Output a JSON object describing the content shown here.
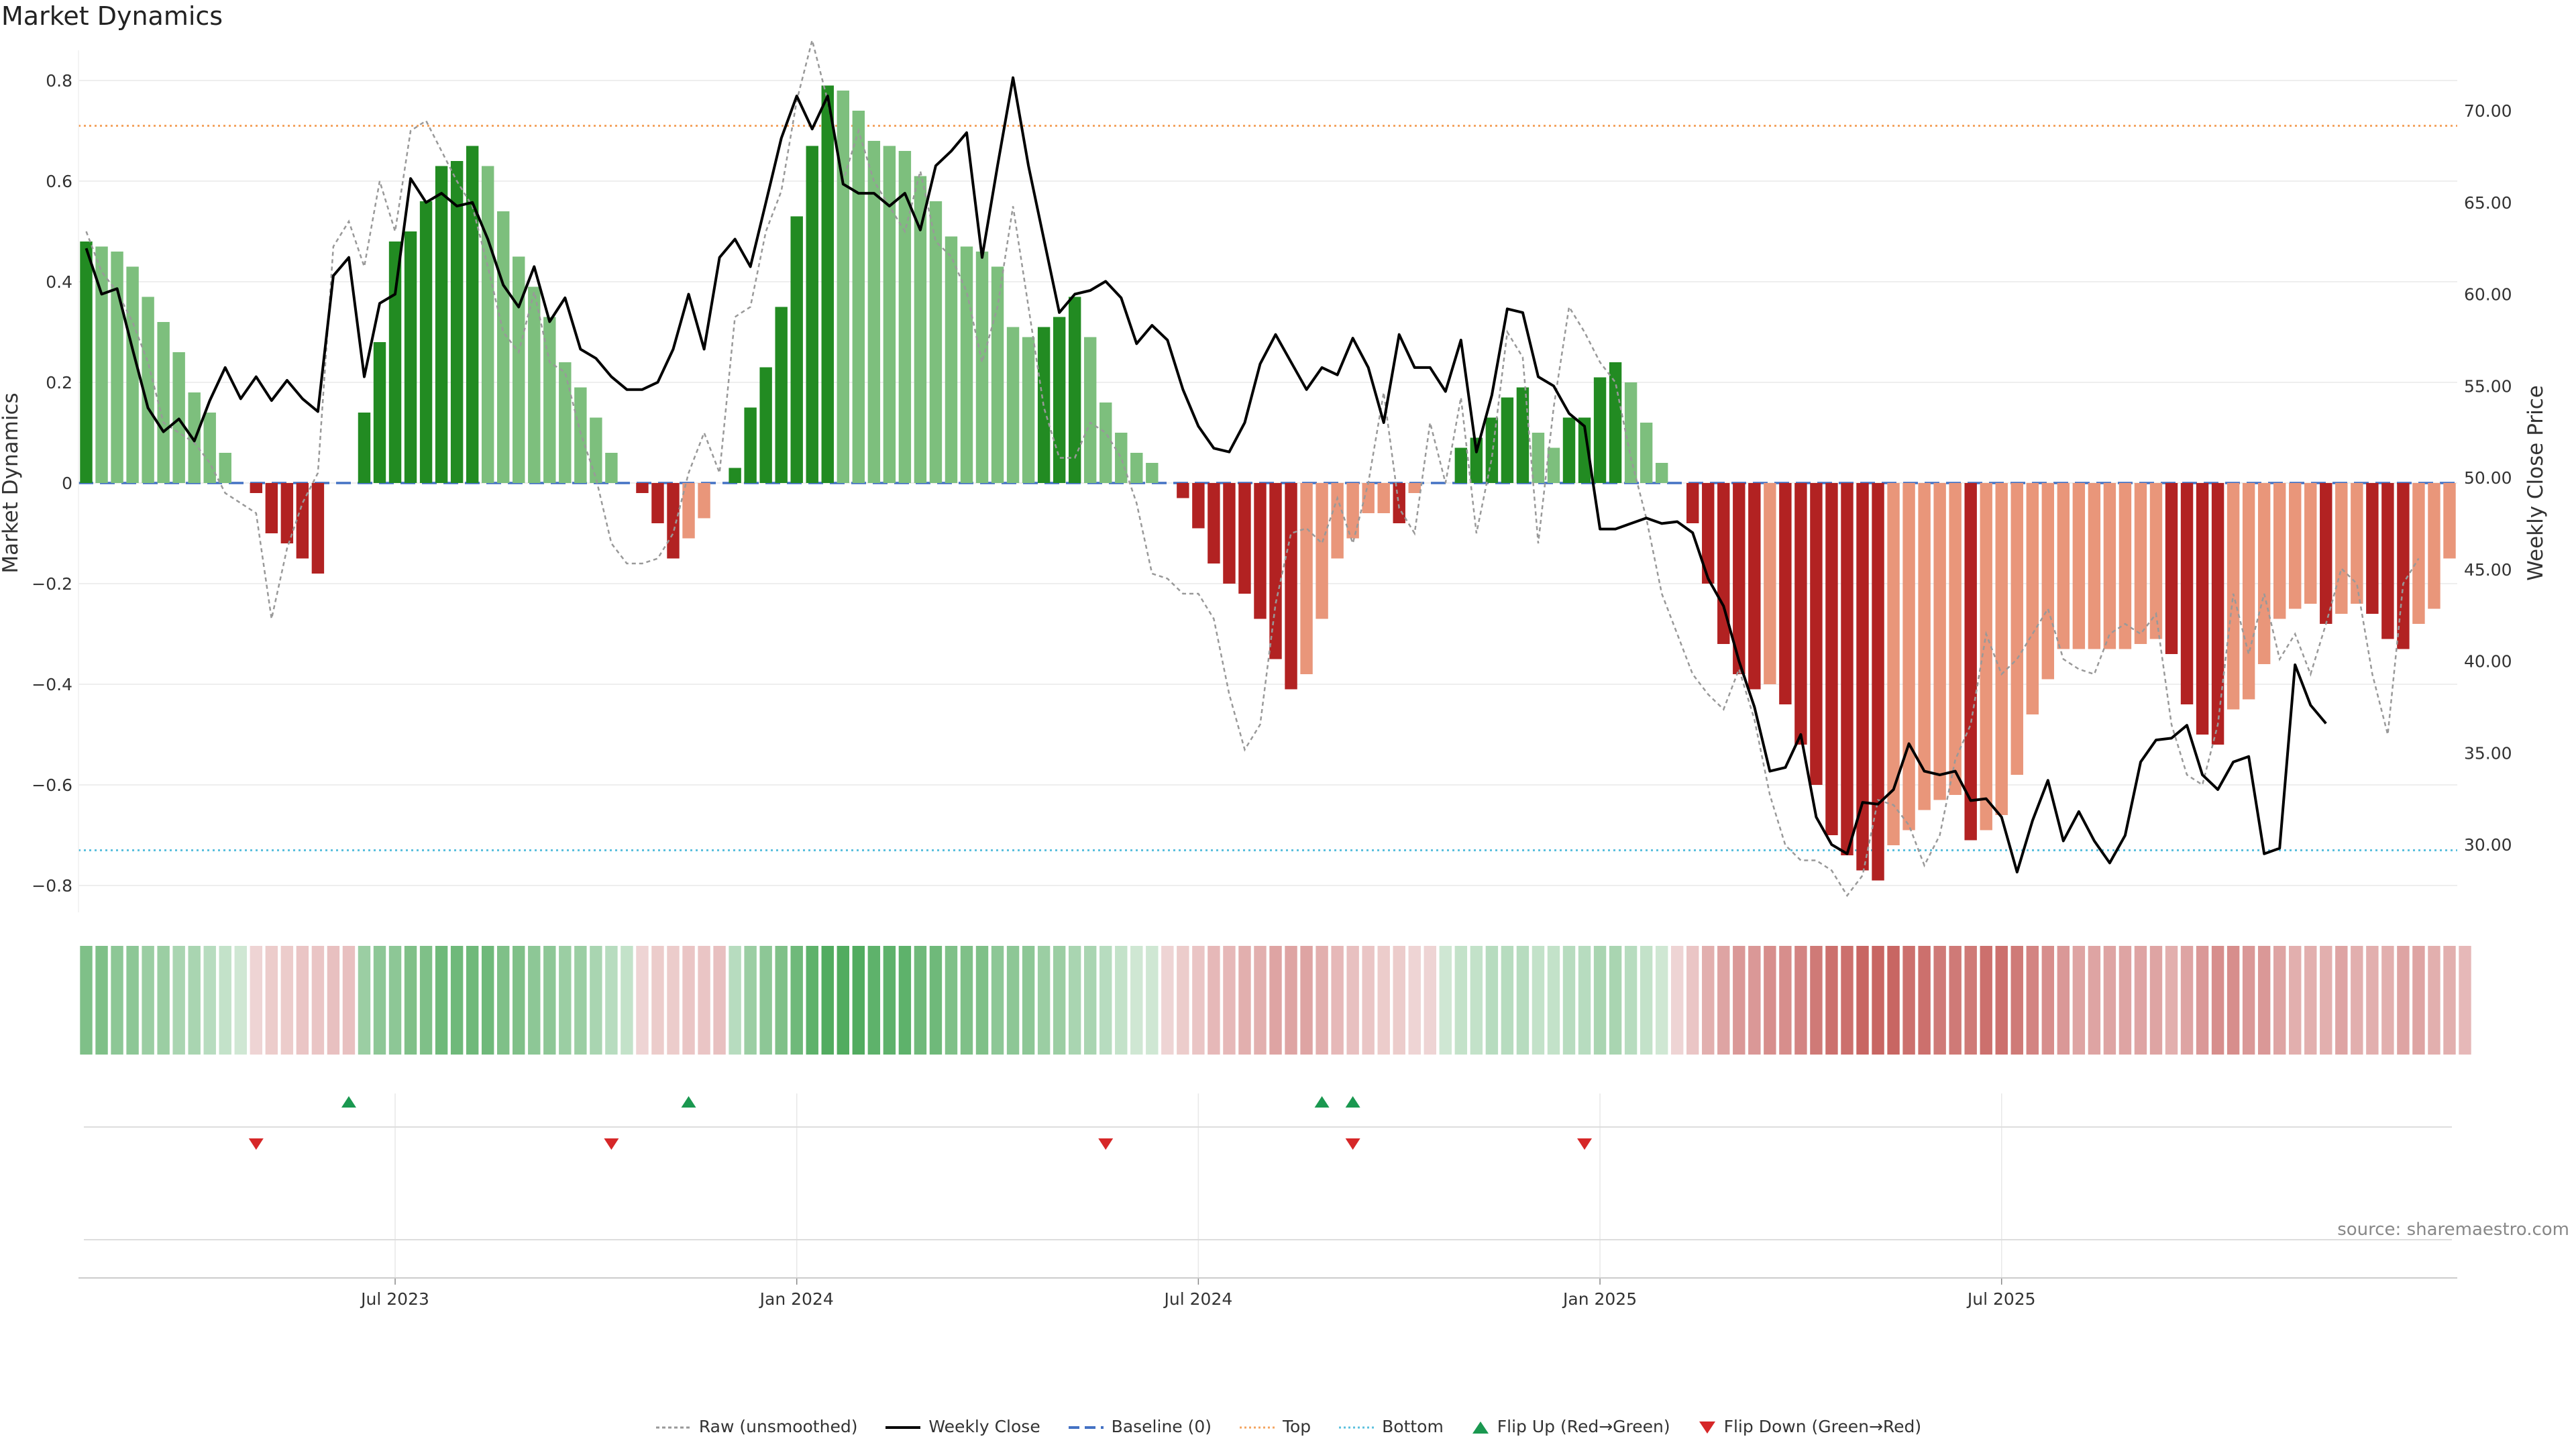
{
  "chart_data": {
    "title": "Market Dynamics",
    "source": "source: sharemaestro.com",
    "type": "bar+line",
    "ylabel_left": "Market Dynamics",
    "ylabel_right": "Weekly Close Price",
    "ylim_left": [
      -0.85,
      0.85
    ],
    "ylim_right": [
      26.5,
      72.5
    ],
    "yticks_left": [
      0.8,
      0.6,
      0.4,
      0.2,
      0,
      -0.2,
      -0.4,
      -0.6,
      -0.8
    ],
    "yticks_left_labels": [
      "0.8",
      "0.6",
      "0.4",
      "0.2",
      "0",
      "−0.2",
      "−0.4",
      "−0.6",
      "−0.8"
    ],
    "yticks_right": [
      70,
      65,
      60,
      55,
      50,
      45,
      40,
      35,
      30
    ],
    "yticks_right_labels": [
      "70.00",
      "65.00",
      "60.00",
      "55.00",
      "50.00",
      "45.00",
      "40.00",
      "35.00",
      "30.00"
    ],
    "xticks": [
      {
        "week": 20,
        "label": "Jul 2023"
      },
      {
        "week": 46,
        "label": "Jan 2024"
      },
      {
        "week": 72,
        "label": "Jul 2024"
      },
      {
        "week": 98,
        "label": "Jan 2025"
      },
      {
        "week": 124,
        "label": "Jul 2025"
      }
    ],
    "top_level": 0.71,
    "bottom_level": -0.73,
    "baseline": 0,
    "dynamics": [
      0.48,
      0.47,
      0.46,
      0.43,
      0.37,
      0.32,
      0.26,
      0.18,
      0.14,
      0.06,
      0.0,
      -0.02,
      -0.1,
      -0.12,
      -0.15,
      -0.18,
      0.0,
      0.0,
      0.14,
      0.28,
      0.48,
      0.5,
      0.56,
      0.63,
      0.64,
      0.67,
      0.63,
      0.54,
      0.45,
      0.39,
      0.33,
      0.24,
      0.19,
      0.13,
      0.06,
      0.0,
      -0.02,
      -0.08,
      -0.15,
      -0.11,
      -0.07,
      0.0,
      0.03,
      0.15,
      0.23,
      0.35,
      0.53,
      0.67,
      0.79,
      0.78,
      0.74,
      0.68,
      0.67,
      0.66,
      0.61,
      0.56,
      0.49,
      0.47,
      0.46,
      0.43,
      0.31,
      0.29,
      0.31,
      0.33,
      0.37,
      0.29,
      0.16,
      0.1,
      0.06,
      0.04,
      0.0,
      -0.03,
      -0.09,
      -0.16,
      -0.2,
      -0.22,
      -0.27,
      -0.35,
      -0.41,
      -0.38,
      -0.27,
      -0.15,
      -0.11,
      -0.06,
      -0.06,
      -0.08,
      -0.02,
      0.0,
      0.0,
      0.07,
      0.09,
      0.13,
      0.17,
      0.19,
      0.1,
      0.07,
      0.13,
      0.13,
      0.21,
      0.24,
      0.2,
      0.12,
      0.04,
      0.0,
      -0.08,
      -0.2,
      -0.32,
      -0.38,
      -0.41,
      -0.4,
      -0.44,
      -0.52,
      -0.6,
      -0.7,
      -0.74,
      -0.77,
      -0.79,
      -0.72,
      -0.69,
      -0.65,
      -0.63,
      -0.62,
      -0.71,
      -0.69,
      -0.66,
      -0.58,
      -0.46,
      -0.39,
      -0.33,
      -0.33,
      -0.33,
      -0.33,
      -0.33,
      -0.32,
      -0.31,
      -0.34,
      -0.44,
      -0.5,
      -0.52,
      -0.45,
      -0.43,
      -0.36,
      -0.27,
      -0.25,
      -0.24,
      -0.28,
      -0.26,
      -0.24,
      -0.26,
      -0.31,
      -0.33,
      -0.28,
      -0.25,
      -0.15
    ],
    "weekly_close": [
      62.5,
      60.0,
      60.3,
      57.0,
      53.8,
      52.5,
      53.2,
      52.0,
      54.2,
      56.0,
      54.3,
      55.5,
      54.2,
      55.3,
      54.3,
      53.6,
      61.0,
      62.0,
      55.5,
      59.5,
      60.0,
      66.3,
      65.0,
      65.5,
      64.8,
      65.0,
      63.0,
      60.5,
      59.3,
      61.5,
      58.5,
      59.8,
      57.0,
      56.5,
      55.5,
      54.8,
      54.8,
      55.2,
      57.0,
      60.0,
      57.0,
      62.0,
      63.0,
      61.5,
      65.0,
      68.5,
      70.8,
      69.0,
      70.8,
      66.0,
      65.5,
      65.5,
      64.8,
      65.5,
      63.5,
      67.0,
      67.8,
      68.8,
      62.0,
      67.0,
      71.8,
      67.0,
      63.0,
      59.0,
      60.0,
      60.2,
      60.7,
      59.8,
      57.3,
      58.3,
      57.5,
      54.8,
      52.8,
      51.6,
      51.4,
      53.0,
      56.2,
      57.8,
      56.3,
      54.8,
      56.0,
      55.6,
      57.6,
      56.0,
      53.0,
      57.8,
      56.0,
      56.0,
      54.7,
      57.5,
      51.4,
      54.5,
      59.2,
      59.0,
      55.5,
      55.0,
      53.5,
      52.8,
      47.2,
      47.2,
      47.5,
      47.8,
      47.5,
      47.6,
      47.0,
      44.5,
      43.0,
      40.0,
      37.5,
      34.0,
      34.2,
      36.0,
      31.5,
      30.0,
      29.5,
      32.3,
      32.2,
      33.0,
      35.5,
      34.0,
      33.8,
      34.0,
      32.4,
      32.5,
      31.5,
      28.5,
      31.3,
      33.5,
      30.2,
      31.8,
      30.2,
      29.0,
      30.5,
      34.5,
      35.7,
      35.8,
      36.5,
      33.8,
      33.0,
      34.5,
      34.8,
      29.5,
      29.8,
      39.8,
      37.6,
      36.6
    ],
    "raw_unsmoothed": [
      0.5,
      0.42,
      0.38,
      0.32,
      0.24,
      0.12,
      0.1,
      0.08,
      0.04,
      -0.02,
      -0.04,
      -0.06,
      -0.27,
      -0.13,
      -0.04,
      0.02,
      0.47,
      0.52,
      0.43,
      0.6,
      0.5,
      0.7,
      0.72,
      0.66,
      0.6,
      0.55,
      0.43,
      0.3,
      0.26,
      0.38,
      0.24,
      0.22,
      0.1,
      0.01,
      -0.12,
      -0.16,
      -0.16,
      -0.15,
      -0.1,
      0.02,
      0.1,
      0.02,
      0.33,
      0.35,
      0.5,
      0.58,
      0.76,
      0.88,
      0.76,
      0.6,
      0.7,
      0.6,
      0.55,
      0.5,
      0.62,
      0.48,
      0.45,
      0.38,
      0.24,
      0.35,
      0.55,
      0.35,
      0.15,
      0.05,
      0.05,
      0.12,
      0.1,
      0.05,
      -0.04,
      -0.18,
      -0.19,
      -0.22,
      -0.22,
      -0.27,
      -0.42,
      -0.53,
      -0.48,
      -0.24,
      -0.1,
      -0.09,
      -0.12,
      -0.03,
      -0.12,
      0.0,
      0.18,
      -0.05,
      -0.1,
      0.12,
      0.0,
      0.17,
      -0.1,
      0.05,
      0.3,
      0.25,
      -0.12,
      0.15,
      0.35,
      0.3,
      0.24,
      0.2,
      0.05,
      -0.07,
      -0.22,
      -0.3,
      -0.38,
      -0.42,
      -0.45,
      -0.37,
      -0.47,
      -0.62,
      -0.72,
      -0.75,
      -0.75,
      -0.77,
      -0.82,
      -0.78,
      -0.63,
      -0.64,
      -0.68,
      -0.76,
      -0.7,
      -0.55,
      -0.48,
      -0.3,
      -0.38,
      -0.35,
      -0.3,
      -0.25,
      -0.35,
      -0.37,
      -0.38,
      -0.3,
      -0.28,
      -0.3,
      -0.26,
      -0.48,
      -0.58,
      -0.6,
      -0.48,
      -0.22,
      -0.34,
      -0.22,
      -0.35,
      -0.3,
      -0.38,
      -0.28,
      -0.17,
      -0.2,
      -0.38,
      -0.5,
      -0.2,
      -0.15
    ],
    "strip_colors": [
      "#7fc088",
      "#7fc088",
      "#8dc796",
      "#8dc796",
      "#9bcea3",
      "#9bcea3",
      "#a9d5b1",
      "#a9d5b1",
      "#b7dcbf",
      "#c3e2c9",
      "#cfe7d3",
      "#eed4d4",
      "#eccccb",
      "#eccccb",
      "#eac5c5",
      "#eac5c5",
      "#e8c0c0",
      "#e8c0c0",
      "#9bcea3",
      "#8dc796",
      "#8dc796",
      "#7fc088",
      "#7fc088",
      "#6fb97a",
      "#6fb97a",
      "#6fb97a",
      "#6fb97a",
      "#7fc088",
      "#7fc088",
      "#8dc796",
      "#8dc796",
      "#9bcea3",
      "#9bcea3",
      "#a9d5b1",
      "#b7dcbf",
      "#c3e2c9",
      "#eed4d4",
      "#eccccb",
      "#eccccb",
      "#eac5c5",
      "#eac5c5",
      "#e8c0c0",
      "#b7dcbf",
      "#9bcea3",
      "#8dc796",
      "#7fc088",
      "#6fb97a",
      "#5eb26b",
      "#52ac60",
      "#52ac60",
      "#52ac60",
      "#5eb26b",
      "#5eb26b",
      "#5eb26b",
      "#6fb97a",
      "#6fb97a",
      "#7fc088",
      "#7fc088",
      "#7fc088",
      "#8dc796",
      "#8dc796",
      "#8dc796",
      "#9bcea3",
      "#9bcea3",
      "#a9d5b1",
      "#a9d5b1",
      "#b7dcbf",
      "#c3e2c9",
      "#cfe7d3",
      "#cfe7d3",
      "#eed4d4",
      "#eccccb",
      "#eac5c5",
      "#e6b8b8",
      "#e6b8b8",
      "#e2afae",
      "#e2afae",
      "#dea4a3",
      "#dea4a3",
      "#dea4a3",
      "#e2afae",
      "#e6b8b8",
      "#e8c0c0",
      "#eac5c5",
      "#eccccb",
      "#eccccb",
      "#eed4d4",
      "#eed4d4",
      "#cfe7d3",
      "#c3e2c9",
      "#c3e2c9",
      "#b7dcbf",
      "#b7dcbf",
      "#b7dcbf",
      "#c3e2c9",
      "#c3e2c9",
      "#b7dcbf",
      "#b7dcbf",
      "#a9d5b1",
      "#a9d5b1",
      "#b7dcbf",
      "#c3e2c9",
      "#cfe7d3",
      "#eed4d4",
      "#eac5c5",
      "#e2afae",
      "#dea4a3",
      "#da9897",
      "#da9897",
      "#d78e8c",
      "#d78e8c",
      "#d38482",
      "#cf7a77",
      "#cc706d",
      "#cc706d",
      "#c86663",
      "#c86663",
      "#c86663",
      "#cc706d",
      "#cc706d",
      "#cf7a77",
      "#cf7a77",
      "#cf7a77",
      "#cc706d",
      "#cc706d",
      "#cf7a77",
      "#d38482",
      "#d78e8c",
      "#da9897",
      "#dea4a3",
      "#dea4a3",
      "#dea4a3",
      "#dea4a3",
      "#dea4a3",
      "#dea4a3",
      "#e2afae",
      "#dea4a3",
      "#da9897",
      "#d78e8c",
      "#d78e8c",
      "#da9897",
      "#da9897",
      "#dea4a3",
      "#e2afae",
      "#e2afae",
      "#e2afae",
      "#dea4a3",
      "#e2afae",
      "#e2afae",
      "#e2afae",
      "#dea4a3",
      "#dea4a3",
      "#e2afae",
      "#e2afae",
      "#e6b8b8"
    ],
    "flip_up_weeks": [
      17,
      39,
      80,
      82
    ],
    "flip_down_weeks": [
      11,
      34,
      66,
      82,
      97
    ],
    "legend": [
      {
        "key": "raw",
        "label": "Raw (unsmoothed)"
      },
      {
        "key": "close",
        "label": "Weekly Close"
      },
      {
        "key": "baseline",
        "label": "Baseline (0)"
      },
      {
        "key": "top",
        "label": "Top"
      },
      {
        "key": "bottom",
        "label": "Bottom"
      },
      {
        "key": "flipup",
        "label": "Flip Up (Red→Green)"
      },
      {
        "key": "flipdown",
        "label": "Flip Down (Green→Red)"
      }
    ]
  },
  "colors": {
    "green_strong": "#228b22",
    "green_light": "#7dbf7d",
    "red_strong": "#b22222",
    "red_light": "#e9967a",
    "close_line": "#000000",
    "raw_line": "#999999",
    "baseline": "#4472c4",
    "top": "#f4a460",
    "bottom": "#5bc0de",
    "flip_up": "#1a9850",
    "flip_down": "#d62728",
    "grid": "#e8e8e8"
  }
}
